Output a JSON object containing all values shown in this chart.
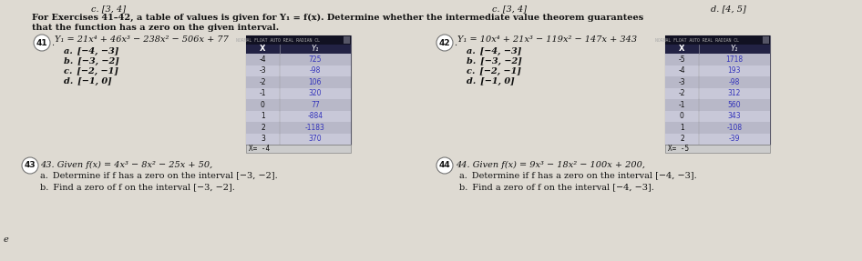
{
  "bg_color": "#dedad2",
  "top_c_left": "c. [3, 4]",
  "top_c_right": "c. [3, 4]",
  "top_d_right": "d. [4, 5]",
  "intro_line1": "For Exercises 41–42, a table of values is given for Y₁ = f(x). Determine whether the intermediate value theorem guarantees",
  "intro_line2": "that the function has a zero on the given interval.",
  "ex41_title": "41. Y₁ = 21x⁴ + 46x³ − 238x² − 506x + 77",
  "ex41_items": [
    "a. [−4, −3]",
    "b. [−3, −2]",
    "c. [−2, −1]",
    "d. [−1, 0]"
  ],
  "ex41_x": [
    "-4",
    "-3",
    "-2",
    "-1",
    "0",
    "1",
    "2",
    "3"
  ],
  "ex41_y": [
    "725",
    "-98",
    "106",
    "320",
    "77",
    "-884",
    "-1183",
    "370"
  ],
  "ex41_xeq": "X= -4",
  "ex42_title": "42. Y₁ = 10x⁴ + 21x³ − 119x² − 147x + 343",
  "ex42_items": [
    "a. [−4, −3]",
    "b. [−3, −2]",
    "c. [−2, −1]",
    "d. [−1, 0]"
  ],
  "ex42_x": [
    "-5",
    "-4",
    "-3",
    "-2",
    "-1",
    "0",
    "1",
    "2"
  ],
  "ex42_y": [
    "1718",
    "193",
    "-98",
    "312",
    "560",
    "343",
    "-108",
    "-39"
  ],
  "ex42_xeq": "X= -5",
  "ex43_title": "43. Given f(x) = 4x³ − 8x² − 25x + 50,",
  "ex43_a": "a. Determine if f has a zero on the interval [−3, −2].",
  "ex43_b": "b. Find a zero of f on the interval [−3, −2].",
  "ex44_title": "44. Given f(x) = 9x³ − 18x² − 100x + 200,",
  "ex44_a": "a. Determine if f has a zero on the interval [−4, −3].",
  "ex44_b": "b. Find a zero of f on the interval [−4, −3].",
  "table_hdr_bg": "#1a1a3a",
  "table_subhdr_bg": "#2a2a5a",
  "table_row_even": "#b8b8c8",
  "table_row_odd": "#c8c8d8",
  "table_border": "#555566",
  "table_text_x": "#111111",
  "table_text_y": "#3333bb",
  "table_header_text": "#cccccc",
  "tc": "#111111",
  "fs_body": 8.0,
  "fs_small": 7.0,
  "fs_table": 5.5
}
